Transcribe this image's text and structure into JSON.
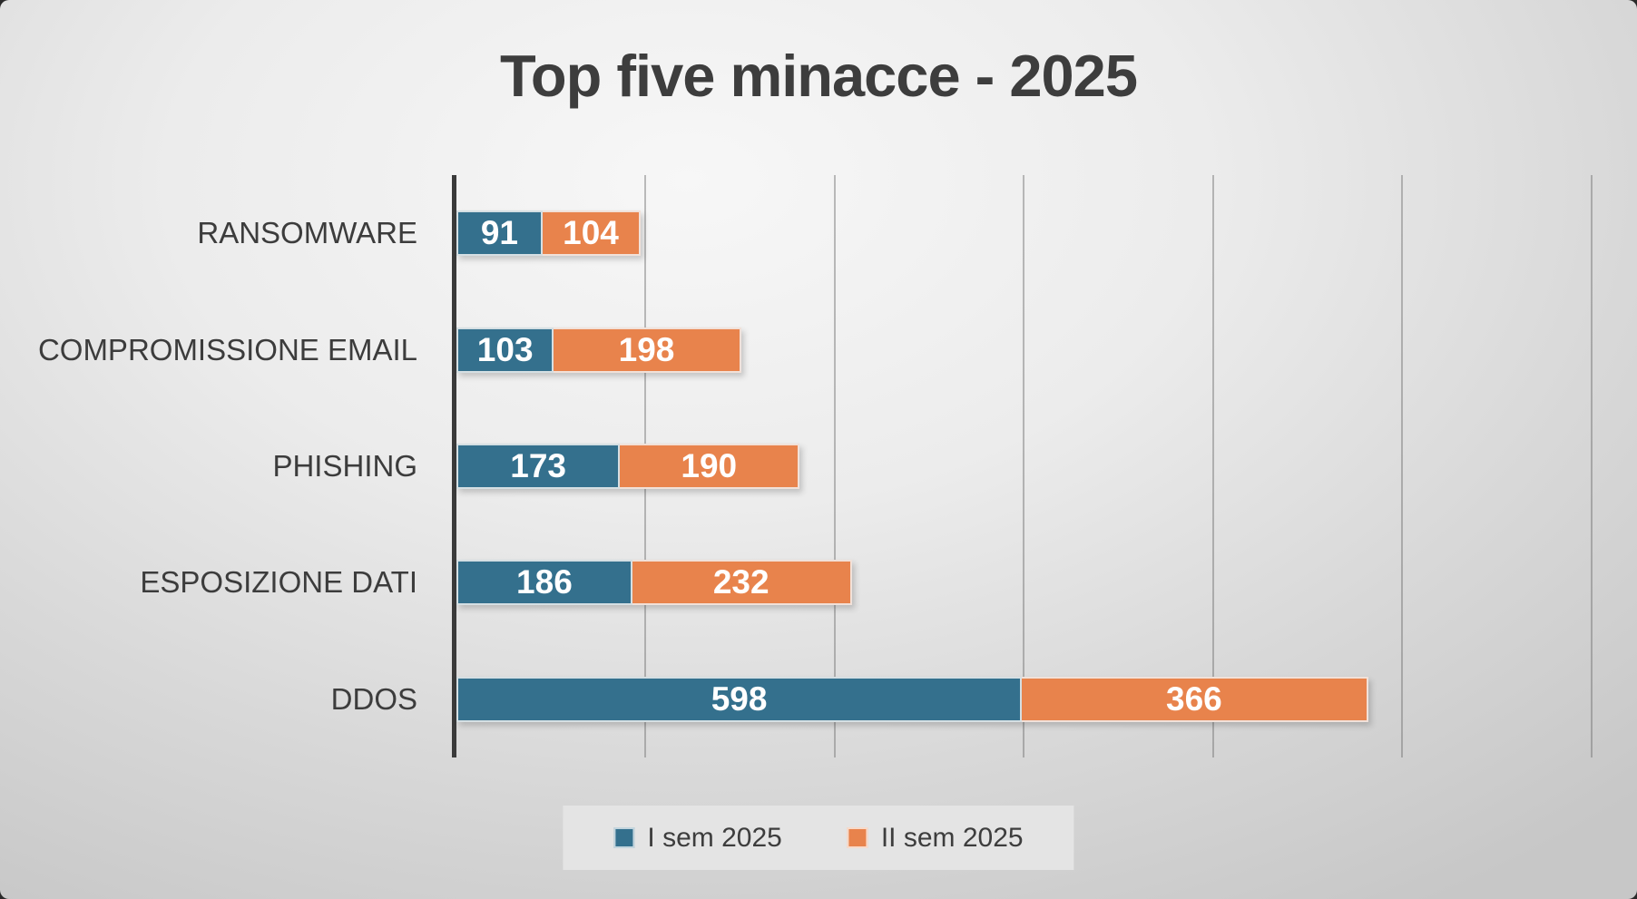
{
  "title": "Top five minacce - 2025",
  "chart_data": {
    "type": "bar",
    "orientation": "horizontal",
    "stacked": true,
    "title": "Top five minacce - 2025",
    "categories": [
      "RANSOMWARE",
      "COMPROMISSIONE EMAIL",
      "PHISHING",
      "ESPOSIZIONE DATI",
      "DDOS"
    ],
    "series": [
      {
        "name": "I sem 2025",
        "color": "#34708D",
        "values": [
          91,
          103,
          173,
          186,
          598
        ]
      },
      {
        "name": "II sem 2025",
        "color": "#E8834C",
        "values": [
          104,
          198,
          190,
          232,
          366
        ]
      }
    ],
    "value_labels": true,
    "value_label_color": "#FFFFFF",
    "xlim": [
      0,
      1235
    ],
    "gridline_interval": 200,
    "grid": true,
    "legend_position": "bottom",
    "legend": [
      "I sem 2025",
      "II sem 2025"
    ]
  },
  "style_colors": {
    "title_text": "#3d3d3d",
    "category_text": "#3c3c3c",
    "axis_line": "#3a3a3a"
  }
}
